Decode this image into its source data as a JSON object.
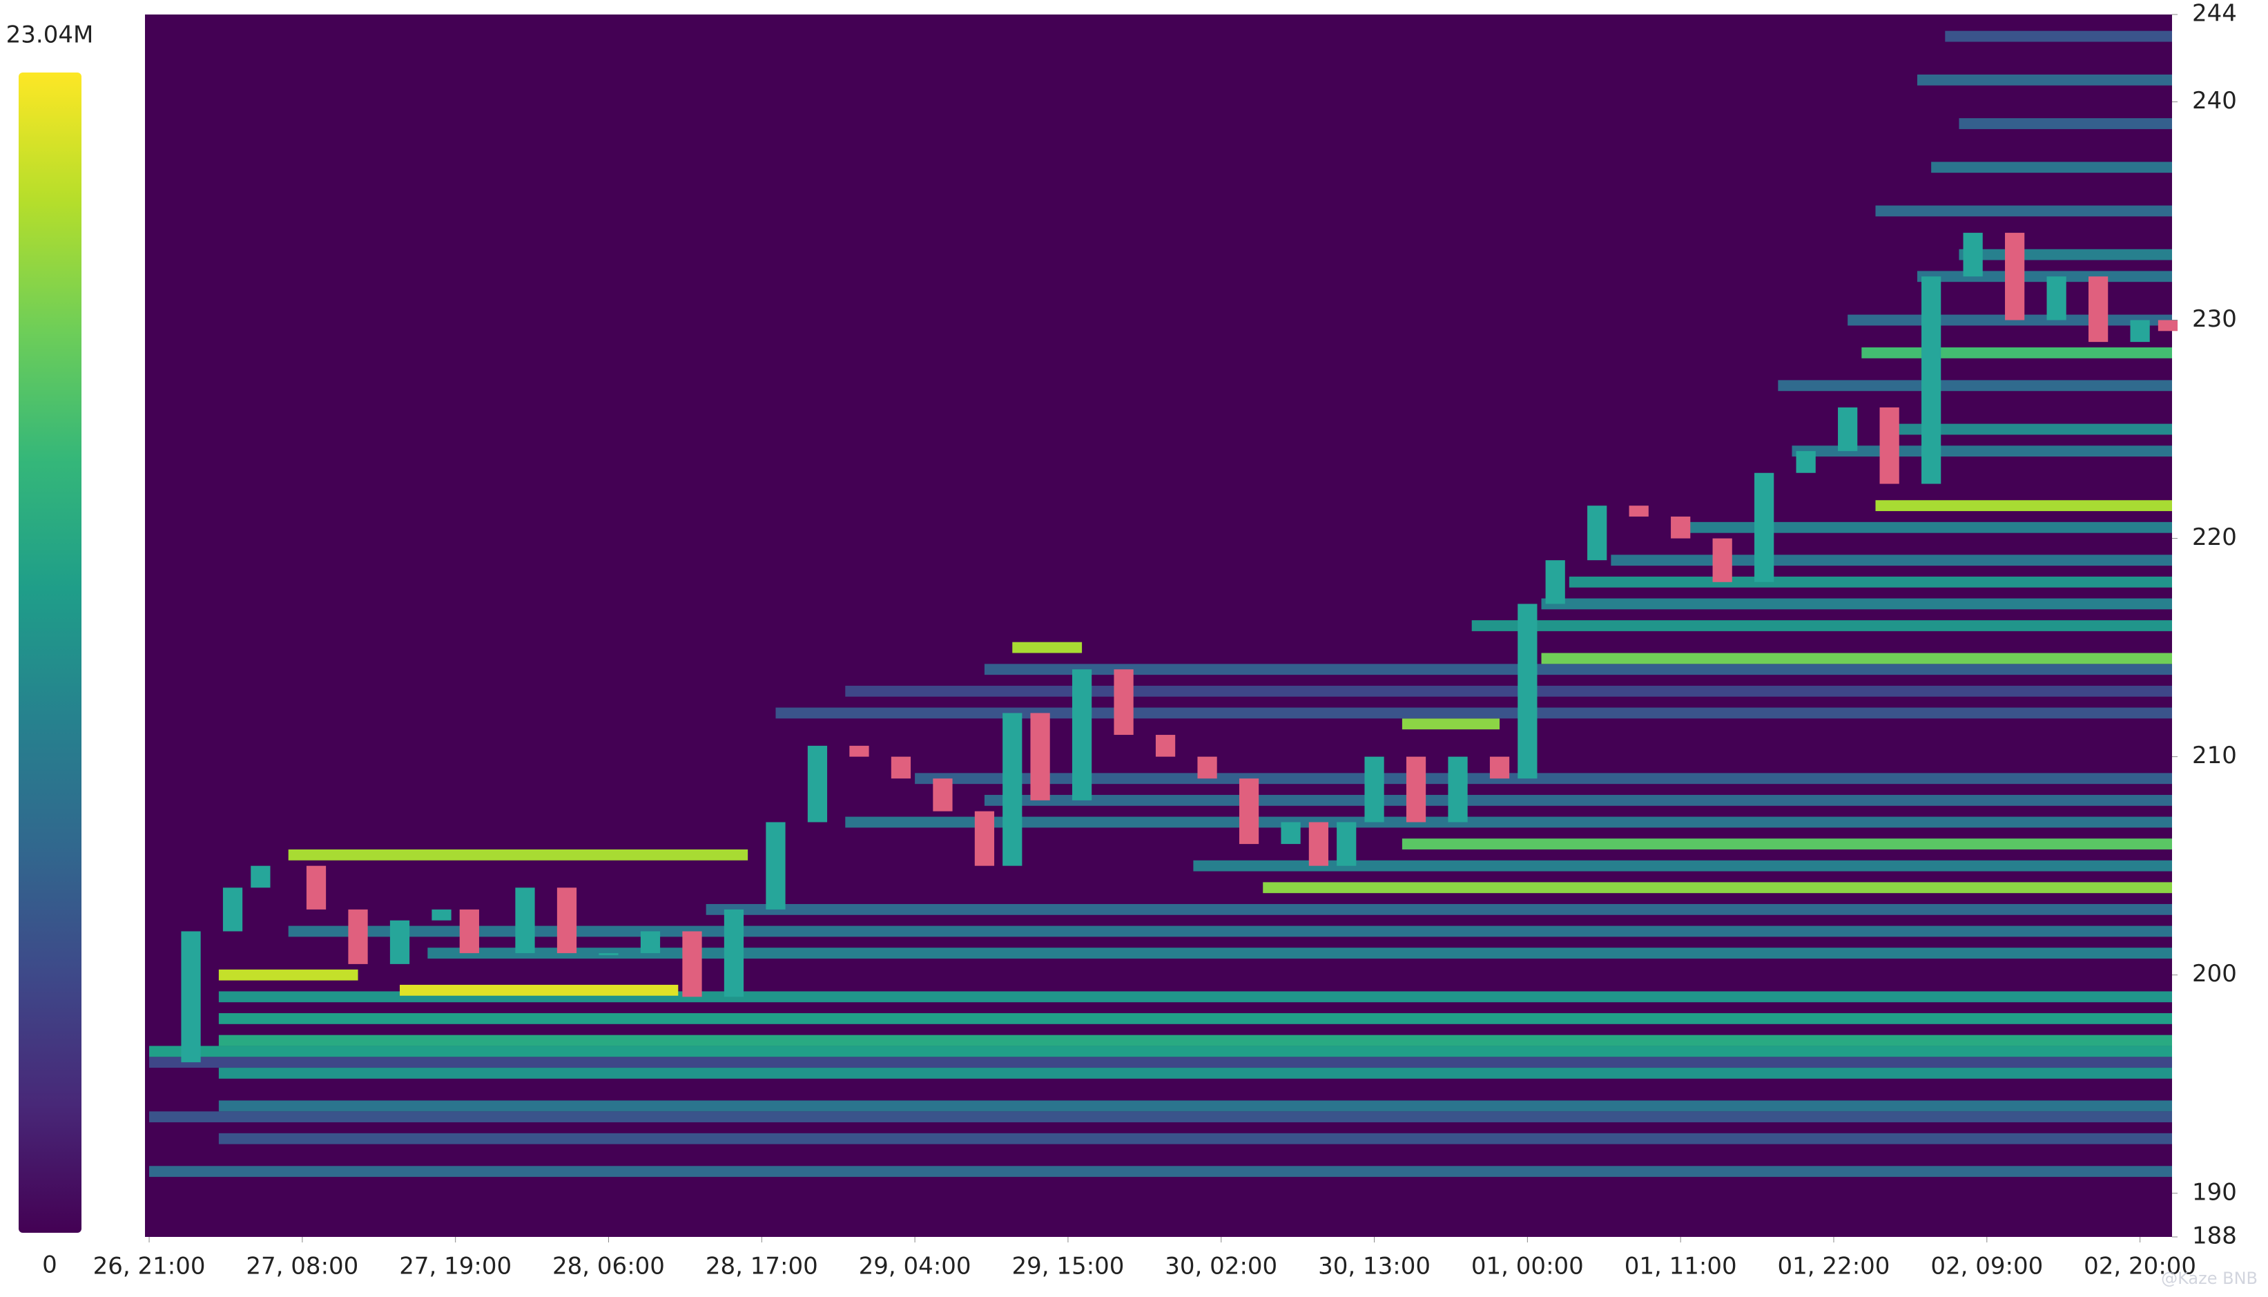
{
  "chart_data": {
    "type": "heatmap",
    "background": "#440154",
    "xlim": [
      -0.3,
      145.3
    ],
    "ylim": [
      188,
      244
    ],
    "xticks": [
      {
        "value": 0,
        "label": "26, 21:00"
      },
      {
        "value": 11,
        "label": "27, 08:00"
      },
      {
        "value": 22,
        "label": "27, 19:00"
      },
      {
        "value": 33,
        "label": "28, 06:00"
      },
      {
        "value": 44,
        "label": "28, 17:00"
      },
      {
        "value": 55,
        "label": "29, 04:00"
      },
      {
        "value": 66,
        "label": "29, 15:00"
      },
      {
        "value": 77,
        "label": "30, 02:00"
      },
      {
        "value": 88,
        "label": "30, 13:00"
      },
      {
        "value": 99,
        "label": "01, 00:00"
      },
      {
        "value": 110,
        "label": "01, 11:00"
      },
      {
        "value": 121,
        "label": "01, 22:00"
      },
      {
        "value": 132,
        "label": "02, 09:00"
      },
      {
        "value": 143,
        "label": "02, 20:00"
      }
    ],
    "yticks": [
      188,
      190,
      200,
      210,
      220,
      230,
      240,
      244
    ],
    "colorbar": {
      "range": [
        0,
        23040000
      ],
      "ticks": [
        0,
        {
          "value": 23040000,
          "label": "23.04M"
        }
      ],
      "colors": [
        "#440154",
        "#482878",
        "#3e4989",
        "#31688e",
        "#26828e",
        "#1f9e89",
        "#35b779",
        "#6ece58",
        "#b5de2b",
        "#fde725"
      ]
    },
    "bands": {
      "price": [
        191,
        192.5,
        193.5,
        194,
        195.5,
        196,
        196.5,
        197,
        198,
        199,
        199.3,
        200,
        201,
        202,
        203,
        204,
        205,
        205.5,
        206,
        207,
        208,
        209,
        211.5,
        212,
        213,
        214,
        214.5,
        215,
        216,
        217,
        218,
        219,
        220.5,
        221.5,
        224,
        225,
        227,
        228.5,
        230,
        232,
        233,
        235,
        237,
        239,
        241,
        243
      ],
      "start": [
        0,
        5,
        0,
        5,
        5,
        0,
        0,
        5,
        5,
        5,
        18,
        5,
        20,
        10,
        40,
        80,
        75,
        10,
        90,
        50,
        60,
        55,
        90,
        45,
        50,
        60,
        100,
        62,
        95,
        100,
        102,
        105,
        110,
        124,
        118,
        125,
        117,
        123,
        122,
        127,
        130,
        124,
        128,
        130,
        127,
        129
      ],
      "end": [
        145.3,
        145.3,
        145.3,
        145.3,
        145.3,
        145.3,
        145.3,
        145.3,
        145.3,
        145.3,
        38,
        15,
        145.3,
        145.3,
        145.3,
        145.3,
        145.3,
        43,
        145.3,
        145.3,
        145.3,
        145.3,
        97,
        145.3,
        145.3,
        145.3,
        145.3,
        67,
        145.3,
        145.3,
        145.3,
        145.3,
        145.3,
        145.3,
        145.3,
        145.3,
        145.3,
        145.3,
        145.3,
        145.3,
        145.3,
        145.3,
        145.3,
        145.3,
        145.3,
        145.3
      ],
      "values": [
        8000000,
        6000000,
        6000000,
        9000000,
        12000000,
        5000000,
        13000000,
        14000000,
        13000000,
        12000000,
        22000000,
        21000000,
        10000000,
        9000000,
        8000000,
        19000000,
        10000000,
        20000000,
        17000000,
        9000000,
        8000000,
        7000000,
        19000000,
        6000000,
        5000000,
        7000000,
        18000000,
        20000000,
        12000000,
        10000000,
        12000000,
        9000000,
        10000000,
        20000000,
        9000000,
        11000000,
        8000000,
        16000000,
        8000000,
        9000000,
        10000000,
        8000000,
        9000000,
        7000000,
        8000000,
        6000000
      ]
    },
    "candles": {
      "up_color": "#26a69a",
      "down_color": "#e0607e",
      "x": [
        0,
        3,
        6,
        8,
        12,
        15,
        18,
        21,
        23,
        27,
        30,
        33,
        36,
        39,
        42,
        45,
        48,
        51,
        54,
        57,
        60,
        62,
        64,
        67,
        70,
        73,
        76,
        79,
        82,
        84,
        86,
        88,
        91,
        94,
        97,
        99,
        101,
        104,
        107,
        110,
        113,
        116,
        119,
        122,
        125,
        128,
        131,
        134,
        137,
        140,
        143,
        145
      ],
      "close": [
        196,
        202,
        204,
        205,
        203,
        200.5,
        202.5,
        203,
        201,
        204,
        201,
        201,
        202,
        199,
        203,
        207,
        210.5,
        210,
        209,
        207.5,
        205,
        212,
        208,
        214,
        211,
        210,
        209,
        206,
        207,
        205,
        207,
        210,
        207,
        210,
        209,
        217,
        219,
        221.5,
        221,
        220,
        218,
        223,
        224,
        226,
        222.5,
        232,
        234,
        230,
        232,
        229,
        230,
        229.5
      ]
    },
    "watermark": "@Kaze BNB"
  }
}
